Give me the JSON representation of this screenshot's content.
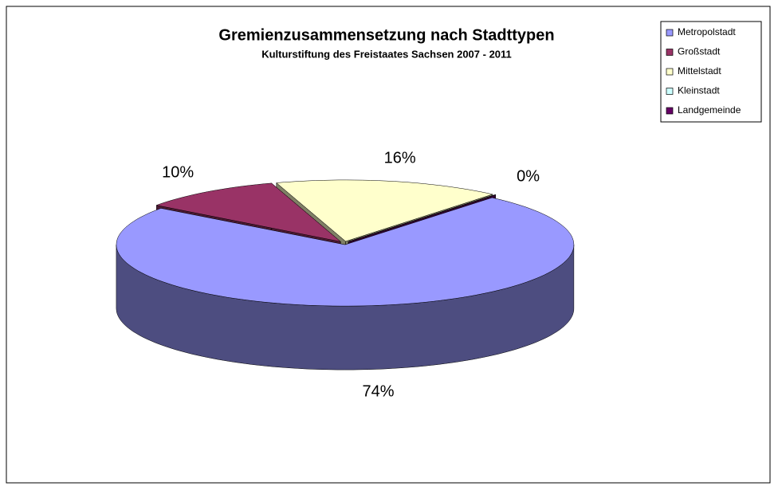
{
  "chart_data": {
    "type": "pie3d",
    "title": "Gremienzusammensetzung nach Stadttypen",
    "subtitle": "Kulturstiftung des Freistaates Sachsen 2007 - 2011",
    "categories": [
      "Metropolstadt",
      "Großstadt",
      "Mittelstadt",
      "Kleinstadt",
      "Landgemeinde"
    ],
    "values": [
      74,
      10,
      16,
      0,
      0
    ],
    "value_labels": [
      "74%",
      "10%",
      "16%",
      null,
      "0%"
    ],
    "colors": [
      "#9999ff",
      "#993366",
      "#ffffcc",
      "#ccffff",
      "#660066"
    ],
    "legend": "top-right"
  }
}
